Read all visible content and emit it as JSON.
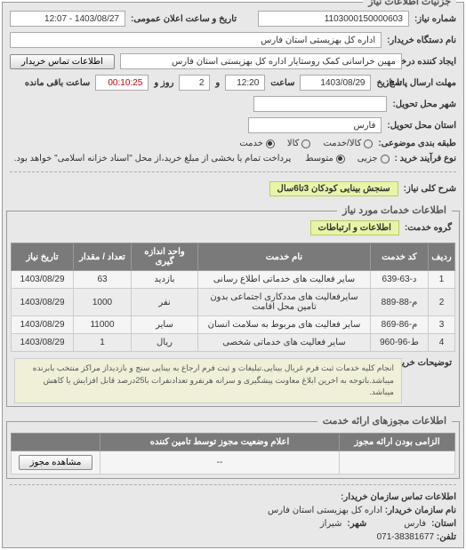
{
  "panel1_title": "جزئیات اطلاعات نیاز",
  "req_number_label": "شماره نیاز:",
  "req_number": "1103000150000603",
  "pub_date_label": "تاریخ و ساعت اعلان عمومی:",
  "pub_date": "1403/08/27 - 12:07",
  "org_label": "نام دستگاه خریدار:",
  "org": "اداره کل بهزیستی استان فارس",
  "creator_label": "ایجاد کننده درخواست:",
  "creator": "مهین خراسانی کمک روستایار اداره کل بهزیستی استان فارس",
  "contact_btn": "اطلاعات تماس خریدار",
  "deadline_label": "مهلت ارسال پاسخ:",
  "deadline_until_label": "تا تاریخ",
  "deadline_date": "1403/08/29",
  "time_label": "ساعت",
  "deadline_time": "12:20",
  "and_label": "و",
  "day_label": "روز و",
  "remain_days": "2",
  "remain_time": "00:10:25",
  "remain_suffix": "ساعت باقی مانده",
  "delivery_city_label": "شهر محل تحویل:",
  "delivery_prov_label": "استان محل تحویل:",
  "delivery_prov": "فارس",
  "category_label": "طبقه بندی موضوعی:",
  "cat_opts": [
    "کالا/خدمت",
    "کالا",
    "خدمت"
  ],
  "cat_selected": 2,
  "proc_label": "نوع فرآیند خرید :",
  "proc_opts": [
    "جزیی",
    "متوسط"
  ],
  "proc_selected": 1,
  "proc_note": "پرداخت تمام یا بخشی از مبلغ خرید،از محل \"اسناد خزانه اسلامی\" خواهد بود.",
  "key_desc_label": "شرح کلی نیاز:",
  "key_desc": "سنجش بینایی کودکان 3تا6سال",
  "panel2_title": "اطلاعات خدمات مورد نیاز",
  "service_group_label": "گروه خدمت:",
  "service_group": "اطلاعات و ارتباطات",
  "table": {
    "headers": [
      "ردیف",
      "کد خدمت",
      "نام خدمت",
      "واحد اندازه گیری",
      "تعداد / مقدار",
      "تاریخ نیاز"
    ],
    "rows": [
      [
        "1",
        "د-63-639",
        "سایر فعالیت های خدماتی اطلاع رسانی",
        "بازدید",
        "63",
        "1403/08/29"
      ],
      [
        "2",
        "م-88-889",
        "سایرفعالیت های مددکاری اجتماعی بدون تامین محل اقامت",
        "نفر",
        "1000",
        "1403/08/29"
      ],
      [
        "3",
        "م-86-869",
        "سایر فعالیت های مربوط به سلامت انسان",
        "سایر",
        "11000",
        "1403/08/29"
      ],
      [
        "4",
        "ط-96-960",
        "سایر فعالیت های خدماتی شخصی",
        "ریال",
        "1",
        "1403/08/29"
      ]
    ]
  },
  "buyer_note_label": "توضیحات خریدار:",
  "buyer_note": "انجام کلیه خدمات ثبت فرم غربال بینایی.تبلیغات و ثبت فرم ارجاع به بینایی سنج و بازدیداز مراکز منتخب بابرنده میباشد.باتوجه به اخرین ابلاغ معاونت پیشگیری و سرانه هرنفرو تعدادنفرات با25درصد قابل افزایش یا کاهش میباشد.",
  "panel3_title": "اطلاعات مجوزهای ارائه خدمت",
  "t2": {
    "headers": [
      "الزامی بودن ارائه مجوز",
      "اعلام وضعیت مجوز توسط تامین کننده",
      ""
    ],
    "row": [
      "",
      "--",
      "مشاهده مجوز"
    ]
  },
  "contact_title": "اطلاعات تماس سازمان خریدار:",
  "c_org_label": "نام سازمان خریدار:",
  "c_org": "اداره کل بهزیستی استان فارس",
  "c_prov_label": "استان:",
  "c_prov": "فارس",
  "c_city_label": "شهر:",
  "c_city": "شیراز",
  "c_tel_label": "تلفن:",
  "c_tel": "38381677-071"
}
